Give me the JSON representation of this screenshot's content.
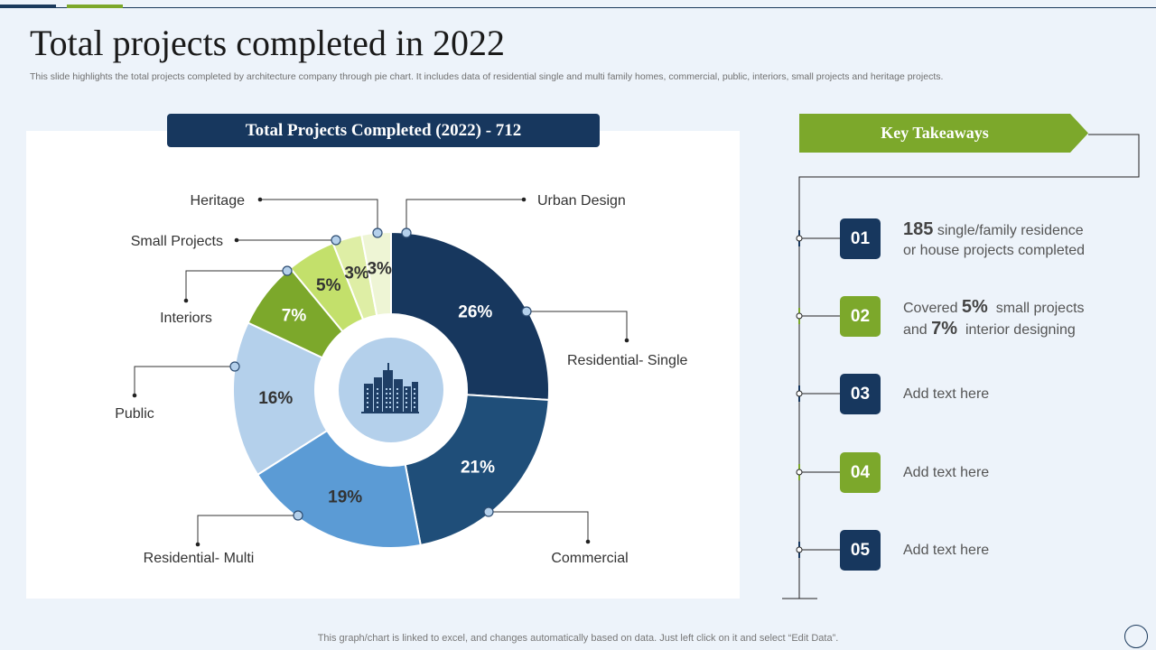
{
  "header": {
    "title": "Total projects completed in 2022",
    "subtitle": "This slide highlights the total projects completed by architecture company through pie chart. It includes data of residential single and multi family homes, commercial, public, interiors, small projects and heritage projects."
  },
  "chart_data": {
    "type": "pie",
    "donut": true,
    "title": "Total Projects Completed (2022) - 712",
    "center_icon": "city-buildings-icon",
    "categories": [
      "Residential- Single",
      "Commercial",
      "Residential- Multi",
      "Public",
      "Interiors",
      "Small Projects",
      "Heritage",
      "Urban Design"
    ],
    "values": [
      26,
      21,
      19,
      16,
      7,
      5,
      3,
      3
    ],
    "value_labels": [
      "26%",
      "21%",
      "19%",
      "16%",
      "7%",
      "5%",
      "3%",
      "3%"
    ],
    "colors": [
      "#17375e",
      "#1f4e79",
      "#5b9bd5",
      "#b4d0eb",
      "#7ca82b",
      "#c3e06b",
      "#deeea5",
      "#eef5d5"
    ],
    "label_colors": [
      "#ffffff",
      "#ffffff",
      "#333333",
      "#333333",
      "#ffffff",
      "#333333",
      "#333333",
      "#333333"
    ]
  },
  "takeaways": {
    "title": "Key Takeaways",
    "items": [
      {
        "number": "01",
        "parts": [
          {
            "text": "185",
            "big": true
          },
          {
            "text": " single/family residence",
            "big": false
          }
        ],
        "line2": [
          {
            "text": "or house projects completed",
            "big": false
          }
        ]
      },
      {
        "number": "02",
        "parts": [
          {
            "text": "Covered ",
            "big": false
          },
          {
            "text": "5%",
            "big": true
          },
          {
            "text": "  small projects",
            "big": false
          }
        ],
        "line2": [
          {
            "text": "and ",
            "big": false
          },
          {
            "text": "7%",
            "big": true
          },
          {
            "text": "  interior designing",
            "big": false
          }
        ]
      },
      {
        "number": "03",
        "parts": [
          {
            "text": "Add text here",
            "big": false
          }
        ],
        "line2": []
      },
      {
        "number": "04",
        "parts": [
          {
            "text": "Add text here",
            "big": false
          }
        ],
        "line2": []
      },
      {
        "number": "05",
        "parts": [
          {
            "text": "Add text here",
            "big": false
          }
        ],
        "line2": []
      }
    ]
  },
  "footer": {
    "note": "This graph/chart is linked to excel,  and changes automatically based on data. Just left click on it and select “Edit Data”."
  },
  "colors": {
    "navy": "#17375e",
    "green": "#7ca82b",
    "background": "#edf3fa"
  }
}
